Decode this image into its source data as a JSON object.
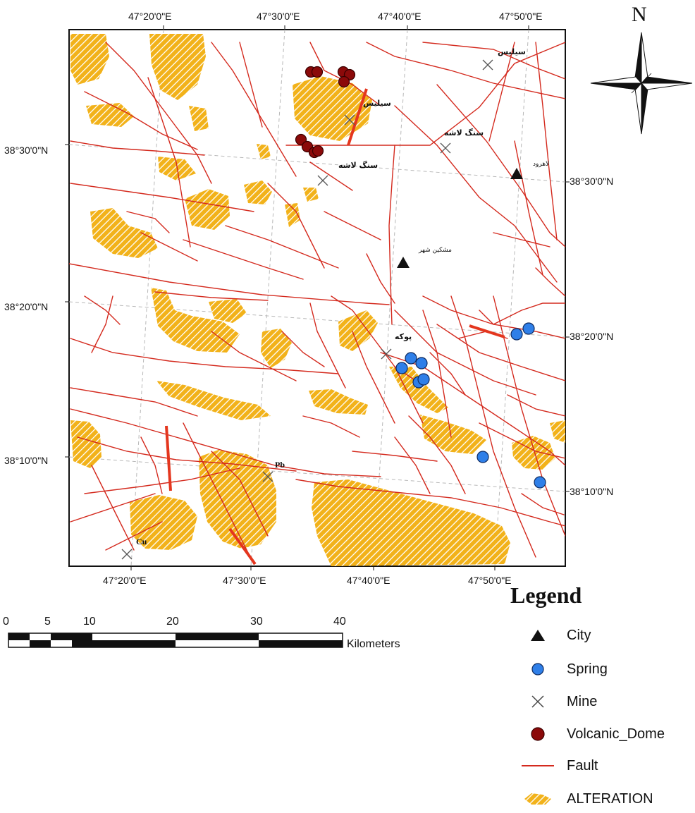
{
  "map": {
    "top_lon_labels": [
      "47°20'0\"E",
      "47°30'0\"E",
      "47°40'0\"E",
      "47°50'0\"E"
    ],
    "bottom_lon_labels": [
      "47°20'0\"E",
      "47°30'0\"E",
      "47°40'0\"E",
      "47°50'0\"E"
    ],
    "left_lat_labels": [
      "38°30'0\"N",
      "38°20'0\"N",
      "38°10'0\"N"
    ],
    "right_lat_labels": [
      "38°30'0\"N",
      "38°20'0\"N",
      "38°10'0\"N"
    ],
    "place_labels": {
      "silis_top": "سیلیس",
      "silis_mid": "سیلیس",
      "sang_lashe_right": "سنگ لاشه",
      "sang_lashe_left": "سنگ لاشه",
      "lahrud": "لاهرود",
      "meshgin_shahr": "مشکین شهر",
      "pukeh": "پوکه",
      "pb": "Pb",
      "cu": "Cu"
    }
  },
  "north_arrow": {
    "letter": "N"
  },
  "scale_bar": {
    "ticks": [
      "0",
      "5",
      "10",
      "20",
      "30",
      "40"
    ],
    "unit": "Kilometers"
  },
  "legend": {
    "title": "Legend",
    "items": [
      {
        "label": "City",
        "icon": "triangle-icon"
      },
      {
        "label": "Spring",
        "icon": "blue-circle-icon"
      },
      {
        "label": "Mine",
        "icon": "crossed-hammers-icon"
      },
      {
        "label": "Volcanic_Dome",
        "icon": "dark-red-circle-icon"
      },
      {
        "label": "Fault",
        "icon": "red-line-icon"
      },
      {
        "label": "ALTERATION",
        "icon": "hatched-patch-icon"
      }
    ]
  },
  "colors": {
    "fault": "#d42a1e",
    "alteration_fill": "#f2b21a",
    "spring": "#2f7fe8",
    "volcanic_dome": "#8b0a0a",
    "city": "#111111",
    "grid": "#b8b8b8"
  }
}
